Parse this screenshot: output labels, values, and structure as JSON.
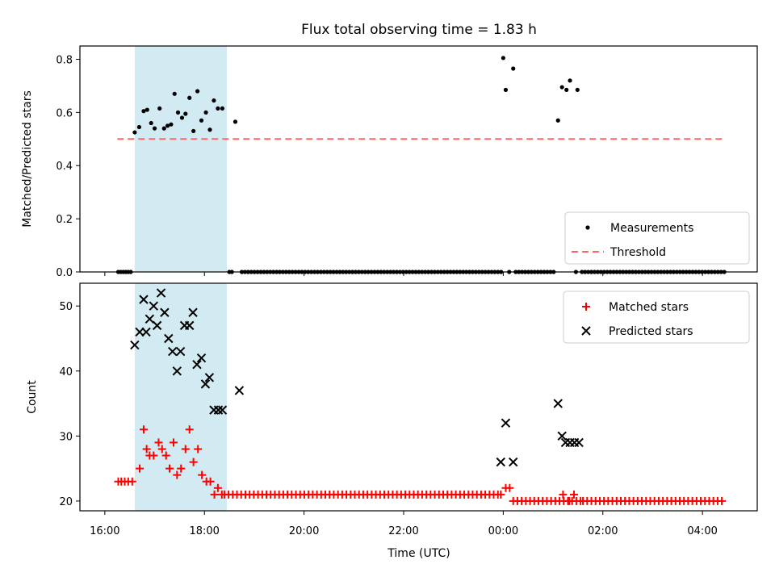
{
  "chart_data": [
    {
      "type": "scatter",
      "title": "Flux total observing time = 1.83 h",
      "xlabel": "",
      "ylabel": "Matched/Predicted stars",
      "ylim": [
        0,
        0.85
      ],
      "yticks": [
        "0.0",
        "0.2",
        "0.4",
        "0.6",
        "0.8"
      ],
      "xlim_hours": [
        15.5,
        29.1
      ],
      "xticks": [
        {
          "t": 16,
          "label": "16:00"
        },
        {
          "t": 18,
          "label": "18:00"
        },
        {
          "t": 20,
          "label": "20:00"
        },
        {
          "t": 22,
          "label": "22:00"
        },
        {
          "t": 24,
          "label": "00:00"
        },
        {
          "t": 26,
          "label": "02:00"
        },
        {
          "t": 28,
          "label": "04:00"
        }
      ],
      "shaded_span_hours": [
        16.6,
        18.45
      ],
      "shaded_color": "#add8e6",
      "threshold": {
        "name": "Threshold",
        "value": 0.5,
        "x_range": [
          16.25,
          28.45
        ],
        "color": "#ff6666"
      },
      "series": [
        {
          "name": "Measurements",
          "color": "#000000",
          "marker": "dot",
          "points": [
            [
              16.27,
              0
            ],
            [
              16.32,
              0
            ],
            [
              16.37,
              0
            ],
            [
              16.42,
              0
            ],
            [
              16.47,
              0
            ],
            [
              16.52,
              0
            ],
            [
              16.6,
              0.525
            ],
            [
              16.69,
              0.545
            ],
            [
              16.78,
              0.605
            ],
            [
              16.85,
              0.61
            ],
            [
              16.93,
              0.56
            ],
            [
              17.0,
              0.54
            ],
            [
              17.1,
              0.615
            ],
            [
              17.19,
              0.54
            ],
            [
              17.26,
              0.55
            ],
            [
              17.33,
              0.555
            ],
            [
              17.4,
              0.67
            ],
            [
              17.47,
              0.6
            ],
            [
              17.55,
              0.58
            ],
            [
              17.62,
              0.595
            ],
            [
              17.7,
              0.655
            ],
            [
              17.78,
              0.53
            ],
            [
              17.86,
              0.68
            ],
            [
              17.94,
              0.57
            ],
            [
              18.03,
              0.6
            ],
            [
              18.11,
              0.535
            ],
            [
              18.19,
              0.645
            ],
            [
              18.27,
              0.615
            ],
            [
              18.36,
              0.615
            ],
            [
              18.62,
              0.565
            ],
            [
              18.5,
              0
            ],
            [
              18.55,
              0
            ],
            [
              24.0,
              0.805
            ],
            [
              24.05,
              0.685
            ],
            [
              24.2,
              0.765
            ],
            [
              24.12,
              0
            ],
            [
              25.1,
              0.57
            ],
            [
              25.18,
              0.695
            ],
            [
              25.27,
              0.685
            ],
            [
              25.34,
              0.72
            ],
            [
              25.49,
              0.685
            ],
            [
              25.46,
              0
            ]
          ],
          "zero_runs": [
            [
              18.75,
              24.0,
              0.0635
            ],
            [
              24.25,
              25.05,
              0.0635
            ],
            [
              25.58,
              28.45,
              0.0635
            ]
          ]
        }
      ],
      "legend": [
        "Measurements",
        "Threshold"
      ],
      "legend_position": "lower right"
    },
    {
      "type": "scatter",
      "title": "",
      "xlabel": "Time (UTC)",
      "ylabel": "Count",
      "ylim": [
        18.5,
        53.5
      ],
      "yticks": [
        "20",
        "30",
        "40",
        "50"
      ],
      "xlim_hours": [
        15.5,
        29.1
      ],
      "xticks": [
        {
          "t": 16,
          "label": "16:00"
        },
        {
          "t": 18,
          "label": "18:00"
        },
        {
          "t": 20,
          "label": "20:00"
        },
        {
          "t": 22,
          "label": "22:00"
        },
        {
          "t": 24,
          "label": "00:00"
        },
        {
          "t": 26,
          "label": "02:00"
        },
        {
          "t": 28,
          "label": "04:00"
        }
      ],
      "shaded_span_hours": [
        16.6,
        18.45
      ],
      "shaded_color": "#add8e6",
      "series": [
        {
          "name": "Matched stars",
          "color": "#ff0000",
          "marker": "plus",
          "points": [
            [
              16.27,
              23
            ],
            [
              16.33,
              23
            ],
            [
              16.4,
              23
            ],
            [
              16.47,
              23
            ],
            [
              16.55,
              23
            ],
            [
              16.7,
              25
            ],
            [
              16.78,
              31
            ],
            [
              16.84,
              28
            ],
            [
              16.9,
              27
            ],
            [
              16.98,
              27
            ],
            [
              17.08,
              29
            ],
            [
              17.15,
              28
            ],
            [
              17.23,
              27
            ],
            [
              17.3,
              25
            ],
            [
              17.38,
              29
            ],
            [
              17.45,
              24
            ],
            [
              17.53,
              25
            ],
            [
              17.62,
              28
            ],
            [
              17.7,
              31
            ],
            [
              17.78,
              26
            ],
            [
              17.87,
              28
            ],
            [
              17.95,
              24
            ],
            [
              18.04,
              23
            ],
            [
              18.12,
              23
            ],
            [
              18.2,
              21
            ],
            [
              18.27,
              22
            ],
            [
              18.35,
              21
            ],
            [
              23.95,
              21
            ],
            [
              24.05,
              22
            ],
            [
              24.13,
              22
            ],
            [
              25.2,
              21
            ],
            [
              25.33,
              20
            ],
            [
              25.42,
              21
            ]
          ],
          "runs": [
            [
              18.4,
              23.9,
              21,
              0.0845
            ],
            [
              24.2,
              25.6,
              20,
              0.0845
            ],
            [
              25.6,
              28.45,
              20,
              0.0845
            ]
          ]
        },
        {
          "name": "Predicted stars",
          "color": "#000000",
          "marker": "x",
          "points": [
            [
              16.6,
              44
            ],
            [
              16.7,
              46
            ],
            [
              16.78,
              51
            ],
            [
              16.83,
              46
            ],
            [
              16.9,
              48
            ],
            [
              16.98,
              50
            ],
            [
              17.05,
              47
            ],
            [
              17.13,
              52
            ],
            [
              17.2,
              49
            ],
            [
              17.28,
              45
            ],
            [
              17.36,
              43
            ],
            [
              17.45,
              40
            ],
            [
              17.52,
              43
            ],
            [
              17.6,
              47
            ],
            [
              17.7,
              47
            ],
            [
              17.77,
              49
            ],
            [
              17.85,
              41
            ],
            [
              17.94,
              42
            ],
            [
              18.02,
              38
            ],
            [
              18.1,
              39
            ],
            [
              18.19,
              34
            ],
            [
              18.28,
              34
            ],
            [
              18.36,
              34
            ],
            [
              18.7,
              37
            ],
            [
              23.95,
              26
            ],
            [
              24.05,
              32
            ],
            [
              24.2,
              26
            ],
            [
              25.1,
              35
            ],
            [
              25.18,
              30
            ],
            [
              25.25,
              29
            ],
            [
              25.34,
              29
            ],
            [
              25.43,
              29
            ],
            [
              25.52,
              29
            ]
          ]
        }
      ],
      "legend": [
        "Matched stars",
        "Predicted stars"
      ],
      "legend_position": "upper right"
    }
  ]
}
